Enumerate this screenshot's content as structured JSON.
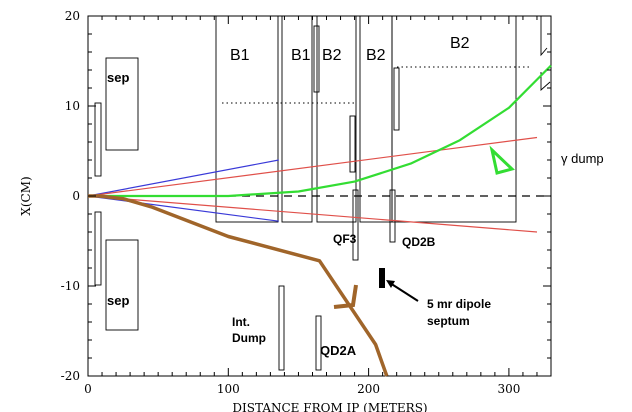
{
  "chart_data": {
    "type": "line",
    "title": "",
    "xlabel": "DISTANCE FROM IP (METERS)",
    "ylabel": "X(CM)",
    "xlim": [
      0,
      330
    ],
    "ylim": [
      -20,
      20
    ],
    "xticks": [
      0,
      100,
      200,
      300
    ],
    "yticks": [
      -20,
      -10,
      0,
      10,
      20
    ],
    "grid": false,
    "series": [
      {
        "color": "#3a3ad8",
        "x": [
          0,
          136
        ],
        "y": [
          0,
          4
        ]
      },
      {
        "color": "#3a3ad8",
        "x": [
          0,
          136
        ],
        "y": [
          0,
          -2.8
        ]
      },
      {
        "color": "#e0504a",
        "x": [
          0,
          320
        ],
        "y": [
          0,
          6.5
        ]
      },
      {
        "color": "#e0504a",
        "x": [
          0,
          320
        ],
        "y": [
          0,
          -4
        ]
      },
      {
        "color": "#33dd33",
        "x": [
          0,
          100,
          150,
          190,
          230,
          265,
          300,
          330
        ],
        "y": [
          0,
          0,
          0.5,
          1.6,
          3.6,
          6.2,
          9.8,
          14.5
        ]
      },
      {
        "color": "#a0652a",
        "x": [
          0,
          8,
          25,
          45,
          100,
          165,
          205,
          213
        ],
        "y": [
          0,
          0,
          -0.3,
          -1.2,
          -4.5,
          -7.2,
          -16.5,
          -20
        ]
      }
    ]
  },
  "labels": {
    "b1_a": "B1",
    "b1_b": "B1",
    "b2_a": "B2",
    "b2_b": "B2",
    "b2_c": "B2",
    "sep_top": "sep",
    "sep_bottom": "sep",
    "qf3": "QF3",
    "qd2b": "QD2B",
    "qd2a": "QD2A",
    "int_dump_1": "Int.",
    "int_dump_2": "Dump",
    "gamma_dump": "γ dump",
    "septum_1": "5 mr dipole",
    "septum_2": "septum"
  },
  "colors": {
    "blue": "#3a3ad8",
    "red": "#e0504a",
    "green": "#33dd33",
    "brown": "#a0652a"
  }
}
